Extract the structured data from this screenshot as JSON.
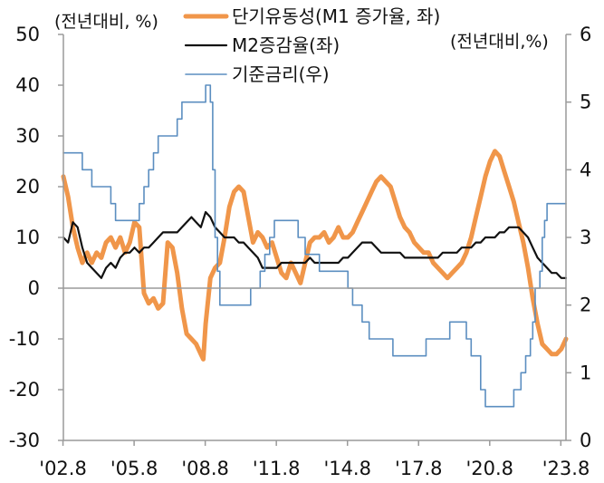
{
  "chart_data": {
    "type": "line",
    "title": "",
    "left_axis": {
      "unit_label": "(전년대비, %)",
      "range": [
        -30,
        50
      ],
      "ticks": [
        "50",
        "40",
        "30",
        "20",
        "10",
        "0",
        "-10",
        "-20",
        "-30"
      ]
    },
    "right_axis": {
      "unit_label": "(전년대비,%)",
      "range": [
        0,
        6
      ],
      "ticks": [
        "6",
        "5",
        "4",
        "3",
        "2",
        "1",
        "0"
      ]
    },
    "x_axis": {
      "range": [
        2002.6,
        2023.8
      ],
      "tick_labels": [
        "'02.8",
        "'05.8",
        "'08.8",
        "'11.8",
        "'14.8",
        "'17.8",
        "'20.8",
        "'23.8"
      ]
    },
    "legend_placement": "top-center",
    "grid": false,
    "series": [
      {
        "name": "단기유동성(M1 증가율, 좌)",
        "axis": "left",
        "color": "#f0964a",
        "points": [
          [
            2002.6,
            22
          ],
          [
            2002.8,
            18
          ],
          [
            2003.0,
            12
          ],
          [
            2003.2,
            8
          ],
          [
            2003.4,
            5
          ],
          [
            2003.6,
            7
          ],
          [
            2003.8,
            5
          ],
          [
            2004.0,
            7
          ],
          [
            2004.2,
            6
          ],
          [
            2004.4,
            9
          ],
          [
            2004.6,
            10
          ],
          [
            2004.8,
            8
          ],
          [
            2005.0,
            10
          ],
          [
            2005.2,
            7
          ],
          [
            2005.4,
            9
          ],
          [
            2005.6,
            13
          ],
          [
            2005.8,
            12
          ],
          [
            2006.0,
            -1
          ],
          [
            2006.2,
            -3
          ],
          [
            2006.4,
            -2
          ],
          [
            2006.6,
            -4
          ],
          [
            2006.8,
            -3
          ],
          [
            2006.9,
            3
          ],
          [
            2007.0,
            9
          ],
          [
            2007.2,
            8
          ],
          [
            2007.4,
            3
          ],
          [
            2007.6,
            -4
          ],
          [
            2007.8,
            -9
          ],
          [
            2008.0,
            -10
          ],
          [
            2008.2,
            -11
          ],
          [
            2008.4,
            -13
          ],
          [
            2008.5,
            -14
          ],
          [
            2008.6,
            -7
          ],
          [
            2008.8,
            2
          ],
          [
            2009.0,
            4
          ],
          [
            2009.2,
            5
          ],
          [
            2009.4,
            10
          ],
          [
            2009.6,
            16
          ],
          [
            2009.8,
            19
          ],
          [
            2010.0,
            20
          ],
          [
            2010.2,
            19
          ],
          [
            2010.4,
            14
          ],
          [
            2010.6,
            9
          ],
          [
            2010.8,
            11
          ],
          [
            2011.0,
            10
          ],
          [
            2011.2,
            8
          ],
          [
            2011.4,
            9
          ],
          [
            2011.6,
            6
          ],
          [
            2011.8,
            3
          ],
          [
            2012.0,
            2
          ],
          [
            2012.2,
            5
          ],
          [
            2012.4,
            3
          ],
          [
            2012.6,
            1
          ],
          [
            2012.8,
            5
          ],
          [
            2013.0,
            9
          ],
          [
            2013.2,
            10
          ],
          [
            2013.4,
            10
          ],
          [
            2013.6,
            11
          ],
          [
            2013.8,
            9
          ],
          [
            2014.0,
            10
          ],
          [
            2014.2,
            12
          ],
          [
            2014.4,
            10
          ],
          [
            2014.6,
            10
          ],
          [
            2014.8,
            11
          ],
          [
            2015.0,
            13
          ],
          [
            2015.2,
            15
          ],
          [
            2015.4,
            17
          ],
          [
            2015.6,
            19
          ],
          [
            2015.8,
            21
          ],
          [
            2016.0,
            22
          ],
          [
            2016.2,
            21
          ],
          [
            2016.4,
            20
          ],
          [
            2016.6,
            17
          ],
          [
            2016.8,
            14
          ],
          [
            2017.0,
            12
          ],
          [
            2017.2,
            11
          ],
          [
            2017.4,
            9
          ],
          [
            2017.6,
            8
          ],
          [
            2017.8,
            7
          ],
          [
            2018.0,
            7
          ],
          [
            2018.2,
            5
          ],
          [
            2018.4,
            4
          ],
          [
            2018.6,
            3
          ],
          [
            2018.8,
            2
          ],
          [
            2019.0,
            3
          ],
          [
            2019.2,
            4
          ],
          [
            2019.4,
            5
          ],
          [
            2019.6,
            7
          ],
          [
            2019.8,
            10
          ],
          [
            2020.0,
            14
          ],
          [
            2020.2,
            18
          ],
          [
            2020.4,
            22
          ],
          [
            2020.6,
            25
          ],
          [
            2020.8,
            27
          ],
          [
            2021.0,
            26
          ],
          [
            2021.2,
            23
          ],
          [
            2021.4,
            20
          ],
          [
            2021.6,
            17
          ],
          [
            2021.8,
            13
          ],
          [
            2022.0,
            9
          ],
          [
            2022.2,
            4
          ],
          [
            2022.4,
            -2
          ],
          [
            2022.6,
            -7
          ],
          [
            2022.8,
            -11
          ],
          [
            2023.0,
            -12
          ],
          [
            2023.2,
            -13
          ],
          [
            2023.4,
            -13
          ],
          [
            2023.6,
            -12
          ],
          [
            2023.8,
            -10
          ]
        ]
      },
      {
        "name": "M2증감율(좌)",
        "axis": "left",
        "color": "#111111",
        "points": [
          [
            2002.6,
            10
          ],
          [
            2002.8,
            9
          ],
          [
            2003.0,
            13
          ],
          [
            2003.2,
            12
          ],
          [
            2003.4,
            8
          ],
          [
            2003.6,
            5
          ],
          [
            2003.8,
            4
          ],
          [
            2004.0,
            3
          ],
          [
            2004.2,
            2
          ],
          [
            2004.4,
            4
          ],
          [
            2004.6,
            5
          ],
          [
            2004.8,
            4
          ],
          [
            2005.0,
            6
          ],
          [
            2005.2,
            7
          ],
          [
            2005.4,
            7
          ],
          [
            2005.6,
            8
          ],
          [
            2005.8,
            7
          ],
          [
            2006.0,
            8
          ],
          [
            2006.2,
            8
          ],
          [
            2006.4,
            9
          ],
          [
            2006.6,
            10
          ],
          [
            2006.8,
            11
          ],
          [
            2007.0,
            11
          ],
          [
            2007.2,
            11
          ],
          [
            2007.4,
            11
          ],
          [
            2007.6,
            12
          ],
          [
            2007.8,
            13
          ],
          [
            2008.0,
            14
          ],
          [
            2008.2,
            13
          ],
          [
            2008.4,
            12
          ],
          [
            2008.6,
            15
          ],
          [
            2008.8,
            14
          ],
          [
            2009.0,
            12
          ],
          [
            2009.2,
            11
          ],
          [
            2009.4,
            10
          ],
          [
            2009.6,
            10
          ],
          [
            2009.8,
            10
          ],
          [
            2010.0,
            9
          ],
          [
            2010.2,
            9
          ],
          [
            2010.4,
            8
          ],
          [
            2010.6,
            7
          ],
          [
            2010.8,
            6
          ],
          [
            2011.0,
            4
          ],
          [
            2011.2,
            4
          ],
          [
            2011.4,
            4
          ],
          [
            2011.6,
            4
          ],
          [
            2011.8,
            5
          ],
          [
            2012.0,
            5
          ],
          [
            2012.2,
            5
          ],
          [
            2012.4,
            5
          ],
          [
            2012.6,
            5
          ],
          [
            2012.8,
            5
          ],
          [
            2013.0,
            6
          ],
          [
            2013.2,
            5
          ],
          [
            2013.4,
            5
          ],
          [
            2013.6,
            5
          ],
          [
            2013.8,
            5
          ],
          [
            2014.0,
            5
          ],
          [
            2014.2,
            5
          ],
          [
            2014.4,
            6
          ],
          [
            2014.6,
            6
          ],
          [
            2014.8,
            7
          ],
          [
            2015.0,
            8
          ],
          [
            2015.2,
            9
          ],
          [
            2015.4,
            9
          ],
          [
            2015.6,
            9
          ],
          [
            2015.8,
            8
          ],
          [
            2016.0,
            7
          ],
          [
            2016.2,
            7
          ],
          [
            2016.4,
            7
          ],
          [
            2016.6,
            7
          ],
          [
            2016.8,
            7
          ],
          [
            2017.0,
            6
          ],
          [
            2017.2,
            6
          ],
          [
            2017.4,
            6
          ],
          [
            2017.6,
            6
          ],
          [
            2017.8,
            6
          ],
          [
            2018.0,
            6
          ],
          [
            2018.2,
            6
          ],
          [
            2018.4,
            6
          ],
          [
            2018.6,
            7
          ],
          [
            2018.8,
            7
          ],
          [
            2019.0,
            7
          ],
          [
            2019.2,
            7
          ],
          [
            2019.4,
            8
          ],
          [
            2019.6,
            8
          ],
          [
            2019.8,
            8
          ],
          [
            2020.0,
            9
          ],
          [
            2020.2,
            9
          ],
          [
            2020.4,
            10
          ],
          [
            2020.6,
            10
          ],
          [
            2020.8,
            10
          ],
          [
            2021.0,
            11
          ],
          [
            2021.2,
            11
          ],
          [
            2021.4,
            12
          ],
          [
            2021.6,
            12
          ],
          [
            2021.8,
            12
          ],
          [
            2022.0,
            11
          ],
          [
            2022.2,
            10
          ],
          [
            2022.4,
            8
          ],
          [
            2022.6,
            6
          ],
          [
            2022.8,
            5
          ],
          [
            2023.0,
            4
          ],
          [
            2023.2,
            3
          ],
          [
            2023.4,
            3
          ],
          [
            2023.6,
            2
          ],
          [
            2023.8,
            2
          ]
        ]
      },
      {
        "name": "기준금리(우)",
        "axis": "right",
        "color": "#5b8ec0",
        "points": [
          [
            2002.6,
            4.25
          ],
          [
            2003.4,
            4.25
          ],
          [
            2003.4,
            4.0
          ],
          [
            2003.8,
            4.0
          ],
          [
            2003.8,
            3.75
          ],
          [
            2004.6,
            3.75
          ],
          [
            2004.6,
            3.5
          ],
          [
            2004.8,
            3.5
          ],
          [
            2004.8,
            3.25
          ],
          [
            2005.8,
            3.25
          ],
          [
            2005.8,
            3.5
          ],
          [
            2006.0,
            3.5
          ],
          [
            2006.0,
            3.75
          ],
          [
            2006.2,
            3.75
          ],
          [
            2006.2,
            4.0
          ],
          [
            2006.4,
            4.0
          ],
          [
            2006.4,
            4.25
          ],
          [
            2006.6,
            4.25
          ],
          [
            2006.6,
            4.5
          ],
          [
            2007.4,
            4.5
          ],
          [
            2007.4,
            4.75
          ],
          [
            2007.6,
            4.75
          ],
          [
            2007.6,
            5.0
          ],
          [
            2008.6,
            5.0
          ],
          [
            2008.6,
            5.25
          ],
          [
            2008.8,
            5.25
          ],
          [
            2008.8,
            5.0
          ],
          [
            2008.9,
            5.0
          ],
          [
            2008.9,
            4.0
          ],
          [
            2009.0,
            4.0
          ],
          [
            2009.0,
            3.0
          ],
          [
            2009.1,
            3.0
          ],
          [
            2009.1,
            2.5
          ],
          [
            2009.2,
            2.5
          ],
          [
            2009.2,
            2.0
          ],
          [
            2010.5,
            2.0
          ],
          [
            2010.5,
            2.25
          ],
          [
            2010.9,
            2.25
          ],
          [
            2010.9,
            2.5
          ],
          [
            2011.1,
            2.5
          ],
          [
            2011.1,
            2.75
          ],
          [
            2011.3,
            2.75
          ],
          [
            2011.3,
            3.0
          ],
          [
            2011.5,
            3.0
          ],
          [
            2011.5,
            3.25
          ],
          [
            2012.5,
            3.25
          ],
          [
            2012.5,
            3.0
          ],
          [
            2012.8,
            3.0
          ],
          [
            2012.8,
            2.75
          ],
          [
            2013.4,
            2.75
          ],
          [
            2013.4,
            2.5
          ],
          [
            2014.6,
            2.5
          ],
          [
            2014.6,
            2.25
          ],
          [
            2014.8,
            2.25
          ],
          [
            2014.8,
            2.0
          ],
          [
            2015.2,
            2.0
          ],
          [
            2015.2,
            1.75
          ],
          [
            2015.5,
            1.75
          ],
          [
            2015.5,
            1.5
          ],
          [
            2016.5,
            1.5
          ],
          [
            2016.5,
            1.25
          ],
          [
            2017.9,
            1.25
          ],
          [
            2017.9,
            1.5
          ],
          [
            2018.9,
            1.5
          ],
          [
            2018.9,
            1.75
          ],
          [
            2019.6,
            1.75
          ],
          [
            2019.6,
            1.5
          ],
          [
            2019.8,
            1.5
          ],
          [
            2019.8,
            1.25
          ],
          [
            2020.2,
            1.25
          ],
          [
            2020.2,
            0.75
          ],
          [
            2020.4,
            0.75
          ],
          [
            2020.4,
            0.5
          ],
          [
            2021.6,
            0.5
          ],
          [
            2021.6,
            0.75
          ],
          [
            2021.9,
            0.75
          ],
          [
            2021.9,
            1.0
          ],
          [
            2022.1,
            1.0
          ],
          [
            2022.1,
            1.25
          ],
          [
            2022.3,
            1.25
          ],
          [
            2022.3,
            1.5
          ],
          [
            2022.4,
            1.5
          ],
          [
            2022.4,
            1.75
          ],
          [
            2022.5,
            1.75
          ],
          [
            2022.5,
            2.25
          ],
          [
            2022.7,
            2.25
          ],
          [
            2022.7,
            2.5
          ],
          [
            2022.8,
            2.5
          ],
          [
            2022.8,
            3.0
          ],
          [
            2022.9,
            3.0
          ],
          [
            2022.9,
            3.25
          ],
          [
            2023.0,
            3.25
          ],
          [
            2023.0,
            3.5
          ],
          [
            2023.8,
            3.5
          ]
        ]
      }
    ]
  }
}
